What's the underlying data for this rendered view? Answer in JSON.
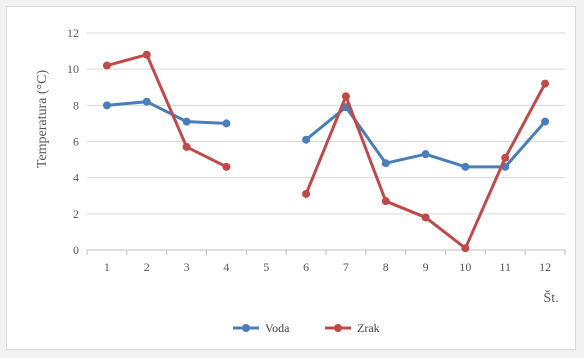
{
  "chart_data": {
    "type": "line",
    "title": "",
    "xlabel": "Št.",
    "ylabel": "Temperatura (°C)",
    "categories": [
      "1",
      "2",
      "3",
      "4",
      "5",
      "6",
      "7",
      "8",
      "9",
      "10",
      "11",
      "12"
    ],
    "ylim": [
      0,
      12
    ],
    "yticks": [
      0,
      2,
      4,
      6,
      8,
      10,
      12
    ],
    "grid": "horizontal",
    "legend_position": "bottom",
    "series": [
      {
        "name": "Voda",
        "color": "#4a7ebb",
        "values": [
          8.0,
          8.2,
          7.1,
          7.0,
          null,
          6.1,
          7.9,
          4.8,
          5.3,
          4.6,
          4.6,
          7.1
        ]
      },
      {
        "name": "Zrak",
        "color": "#be4b48",
        "values": [
          10.2,
          10.8,
          5.7,
          4.6,
          null,
          3.1,
          8.5,
          2.7,
          1.8,
          0.1,
          5.1,
          9.2
        ]
      }
    ]
  }
}
